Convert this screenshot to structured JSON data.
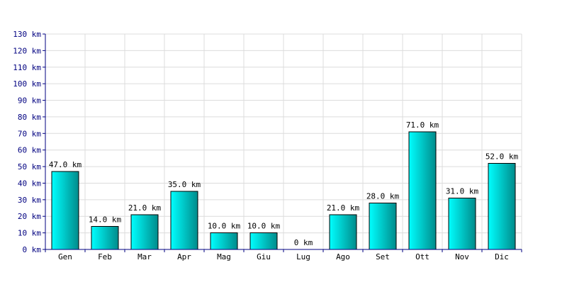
{
  "chart_data": {
    "type": "bar",
    "categories": [
      "Gen",
      "Feb",
      "Mar",
      "Apr",
      "Mag",
      "Giu",
      "Lug",
      "Ago",
      "Set",
      "Ott",
      "Nov",
      "Dic"
    ],
    "values": [
      47,
      14,
      21,
      35,
      10,
      10,
      0,
      21,
      28,
      71,
      31,
      52
    ],
    "value_labels": [
      "47.0 km",
      "14.0 km",
      "21.0 km",
      "35.0 km",
      "10.0 km",
      "10.0 km",
      "0 km",
      "21.0 km",
      "28.0 km",
      "71.0 km",
      "31.0 km",
      "52.0 km"
    ],
    "y_ticks": [
      0,
      10,
      20,
      30,
      40,
      50,
      60,
      70,
      80,
      90,
      100,
      110,
      120,
      130
    ],
    "y_tick_labels": [
      "0 km",
      "10 km",
      "20 km",
      "30 km",
      "40 km",
      "50 km",
      "60 km",
      "70 km",
      "80 km",
      "90 km",
      "100 km",
      "110 km",
      "120 km",
      "130 km"
    ],
    "ylim": [
      0,
      130
    ],
    "grid": true,
    "bar_color_top": "#00ffff",
    "bar_color_bottom": "#008b8b",
    "gridline_color": "#dcdcdc",
    "axis_color": "#000080"
  }
}
